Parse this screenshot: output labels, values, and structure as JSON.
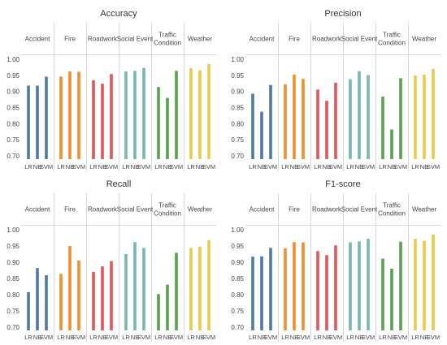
{
  "chart_data": [
    {
      "type": "bar",
      "title": "Accuracy",
      "groups": [
        "Accident",
        "Fire",
        "Roadwork",
        "Social Event",
        "Traffic Condition",
        "Weather"
      ],
      "categories": [
        "LR",
        "NB",
        "SVM"
      ],
      "yticks": [
        "1.00",
        "0.95",
        "0.90",
        "0.85",
        "0.80",
        "0.75",
        "0.70"
      ],
      "ylim": [
        0.69,
        1.01
      ],
      "series": [
        {
          "group": "Accident",
          "values": [
            0.918,
            0.918,
            0.946
          ]
        },
        {
          "group": "Fire",
          "values": [
            0.946,
            0.962,
            0.961
          ]
        },
        {
          "group": "Roadwork",
          "values": [
            0.935,
            0.924,
            0.954
          ]
        },
        {
          "group": "Social Event",
          "values": [
            0.962,
            0.964,
            0.973
          ]
        },
        {
          "group": "Traffic Condition",
          "values": [
            0.914,
            0.88,
            0.964
          ]
        },
        {
          "group": "Weather",
          "values": [
            0.972,
            0.966,
            0.985
          ]
        }
      ]
    },
    {
      "type": "bar",
      "title": "Precision",
      "groups": [
        "Accident",
        "Fire",
        "Roadwork",
        "Social Event",
        "Traffic Condition",
        "Weather"
      ],
      "categories": [
        "LR",
        "NB",
        "SVM"
      ],
      "yticks": [
        "1.00",
        "0.95",
        "0.90",
        "0.85",
        "0.80",
        "0.75",
        "0.70"
      ],
      "ylim": [
        0.69,
        1.01
      ],
      "series": [
        {
          "group": "Accident",
          "values": [
            0.893,
            0.837,
            0.92
          ]
        },
        {
          "group": "Fire",
          "values": [
            0.922,
            0.952,
            0.939
          ]
        },
        {
          "group": "Roadwork",
          "values": [
            0.906,
            0.871,
            0.927
          ]
        },
        {
          "group": "Social Event",
          "values": [
            0.938,
            0.963,
            0.951
          ]
        },
        {
          "group": "Traffic Condition",
          "values": [
            0.884,
            0.782,
            0.941
          ]
        },
        {
          "group": "Weather",
          "values": [
            0.95,
            0.952,
            0.97
          ]
        }
      ]
    },
    {
      "type": "bar",
      "title": "Recall",
      "groups": [
        "Accident",
        "Fire",
        "Roadwork",
        "Social Event",
        "Traffic Condition",
        "Weather"
      ],
      "categories": [
        "LR",
        "NB",
        "SVM"
      ],
      "yticks": [
        "1.00",
        "0.95",
        "0.90",
        "0.85",
        "0.80",
        "0.75",
        "0.70"
      ],
      "ylim": [
        0.69,
        1.01
      ],
      "series": [
        {
          "group": "Accident",
          "values": [
            0.808,
            0.882,
            0.86
          ]
        },
        {
          "group": "Fire",
          "values": [
            0.864,
            0.95,
            0.905
          ]
        },
        {
          "group": "Roadwork",
          "values": [
            0.87,
            0.887,
            0.903
          ]
        },
        {
          "group": "Social Event",
          "values": [
            0.925,
            0.962,
            0.944
          ]
        },
        {
          "group": "Traffic Condition",
          "values": [
            0.802,
            0.831,
            0.929
          ]
        },
        {
          "group": "Weather",
          "values": [
            0.944,
            0.948,
            0.968
          ]
        }
      ]
    },
    {
      "type": "bar",
      "title": "F1-score",
      "groups": [
        "Accident",
        "Fire",
        "Roadwork",
        "Social Event",
        "Traffic Condition",
        "Weather"
      ],
      "categories": [
        "LR",
        "NB",
        "SVM"
      ],
      "yticks": [
        "1.00",
        "0.95",
        "0.90",
        "0.85",
        "0.80",
        "0.75",
        "0.70"
      ],
      "ylim": [
        0.69,
        1.01
      ],
      "series": [
        {
          "group": "Accident",
          "values": [
            0.917,
            0.918,
            0.944
          ]
        },
        {
          "group": "Fire",
          "values": [
            0.943,
            0.962,
            0.961
          ]
        },
        {
          "group": "Roadwork",
          "values": [
            0.934,
            0.922,
            0.952
          ]
        },
        {
          "group": "Social Event",
          "values": [
            0.961,
            0.964,
            0.972
          ]
        },
        {
          "group": "Traffic Condition",
          "values": [
            0.911,
            0.88,
            0.963
          ]
        },
        {
          "group": "Weather",
          "values": [
            0.972,
            0.966,
            0.985
          ]
        }
      ]
    }
  ],
  "colors": {
    "Accident": "#4e79a7",
    "Fire": "#f28e2b",
    "Roadwork": "#e15759",
    "Social Event": "#76b7b2",
    "Traffic Condition": "#59a14f",
    "Weather": "#edc948",
    "divider": "#d9d9d9",
    "text": "#444444",
    "title": "#333333"
  }
}
